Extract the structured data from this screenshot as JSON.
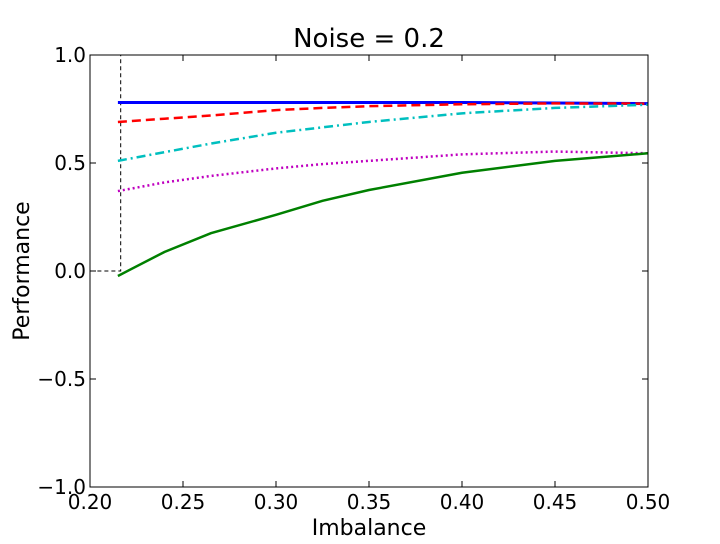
{
  "chart_data": {
    "type": "line",
    "title": "Noise = 0.2",
    "xlabel": "Imbalance",
    "ylabel": "Performance",
    "xlim": [
      0.2,
      0.5
    ],
    "ylim": [
      -1.0,
      1.0
    ],
    "xticks": [
      "0.20",
      "0.25",
      "0.30",
      "0.35",
      "0.40",
      "0.45",
      "0.50"
    ],
    "xtick_values": [
      0.2,
      0.25,
      0.3,
      0.35,
      0.4,
      0.45,
      0.5
    ],
    "yticks": [
      "−1.0",
      "−0.5",
      "0.0",
      "0.5",
      "1.0"
    ],
    "ytick_values": [
      -1.0,
      -0.5,
      0.0,
      0.5,
      1.0
    ],
    "grid": false,
    "x": [
      0.215,
      0.24,
      0.265,
      0.3,
      0.325,
      0.35,
      0.4,
      0.45,
      0.5
    ],
    "series": [
      {
        "name": "blue-solid",
        "color": "#0000ff",
        "style": "solid",
        "values": [
          0.78,
          0.78,
          0.78,
          0.78,
          0.78,
          0.78,
          0.78,
          0.778,
          0.775
        ]
      },
      {
        "name": "red-dashed",
        "color": "#ff0000",
        "style": "dashed",
        "values": [
          0.69,
          0.705,
          0.72,
          0.745,
          0.755,
          0.763,
          0.772,
          0.776,
          0.775
        ]
      },
      {
        "name": "cyan-dashdot",
        "color": "#00bfbf",
        "style": "dashdot",
        "values": [
          0.51,
          0.55,
          0.59,
          0.64,
          0.665,
          0.69,
          0.73,
          0.755,
          0.77
        ]
      },
      {
        "name": "magenta-dotted",
        "color": "#bf00bf",
        "style": "dotted",
        "values": [
          0.37,
          0.41,
          0.44,
          0.475,
          0.495,
          0.51,
          0.54,
          0.553,
          0.545
        ]
      },
      {
        "name": "green-solid",
        "color": "#008000",
        "style": "solid",
        "values": [
          -0.023,
          0.088,
          0.175,
          0.26,
          0.325,
          0.375,
          0.455,
          0.51,
          0.545
        ]
      }
    ],
    "highlight_box": {
      "x": [
        0.2,
        0.2165
      ],
      "y": [
        0.0,
        1.0
      ]
    }
  }
}
